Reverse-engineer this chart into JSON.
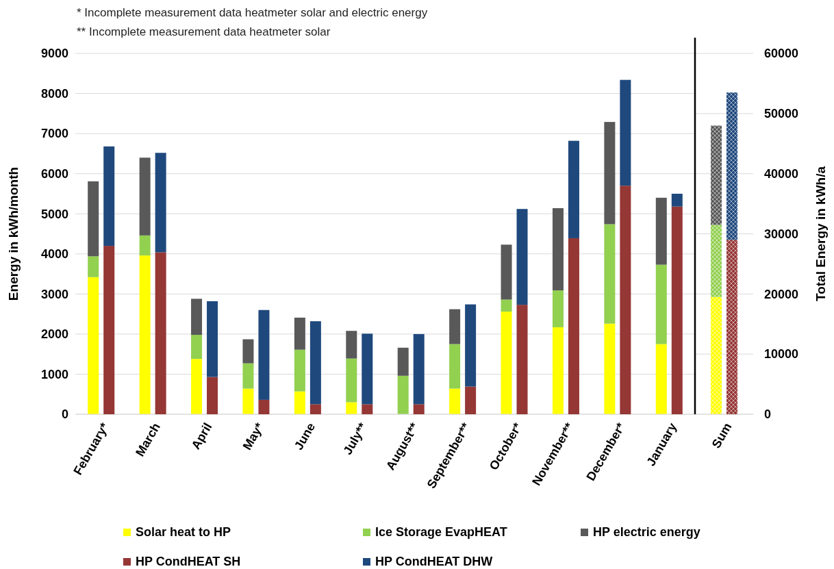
{
  "chart_data": [
    {
      "type": "bar",
      "stacked": true,
      "annotations": [
        "*   Incomplete measurement data heatmeter solar and electric energy",
        "** Incomplete measurement data heatmeter solar"
      ],
      "ylabel": "Energy in kWh/month",
      "categories": [
        "February*",
        "March",
        "April",
        "May*",
        "June",
        "July**",
        "August**",
        "September**",
        "October*",
        "November**",
        "December*",
        "January"
      ],
      "ylim": [
        0,
        9000
      ],
      "yticks": [
        0,
        1000,
        2000,
        3000,
        4000,
        5000,
        6000,
        7000,
        8000,
        9000
      ],
      "grid": "y",
      "legend": "bottom",
      "series": [
        {
          "name": "Solar heat to HP",
          "color": "#ffff00",
          "values": [
            3420,
            3960,
            1380,
            640,
            570,
            300,
            0,
            640,
            2560,
            2170,
            2260,
            1750
          ]
        },
        {
          "name": "Ice Storage EvapHEAT",
          "color": "#92d050",
          "values": [
            520,
            500,
            600,
            630,
            1040,
            1090,
            960,
            1110,
            300,
            920,
            2480,
            1980
          ]
        },
        {
          "name": "HP electric energy",
          "color": "#595959",
          "values": [
            1870,
            1940,
            900,
            600,
            800,
            690,
            700,
            870,
            1370,
            2050,
            2550,
            1670
          ]
        }
      ]
    },
    {
      "type": "bar",
      "stacked": true,
      "categories": [
        "February*",
        "March",
        "April",
        "May*",
        "June",
        "July**",
        "August**",
        "September**",
        "October*",
        "November**",
        "December*",
        "January"
      ],
      "ylim": [
        0,
        9000
      ],
      "tick_labels": false,
      "legend": "bottom",
      "series": [
        {
          "name": "HP CondHEAT SH",
          "color": "#953735",
          "values": [
            4200,
            4040,
            930,
            360,
            250,
            250,
            250,
            690,
            2730,
            4390,
            5700,
            5180
          ]
        },
        {
          "name": "HP CondHEAT DHW",
          "color": "#1f497d",
          "values": [
            2480,
            2480,
            1890,
            2240,
            2070,
            1760,
            1750,
            2050,
            2390,
            2430,
            2640,
            320
          ]
        }
      ]
    },
    {
      "type": "bar",
      "stacked": true,
      "ylabel": "Total Energy in kWh/a",
      "categories": [
        "Sum"
      ],
      "ylim": [
        0,
        60000
      ],
      "yticks": [
        0,
        10000,
        20000,
        30000,
        40000,
        50000,
        60000
      ],
      "grid": "y",
      "series": [
        {
          "color": "#ffff00",
          "values": [
            19500
          ]
        },
        {
          "color": "#92d050",
          "values": [
            12000
          ]
        },
        {
          "color": "#595959",
          "values": [
            16500
          ]
        }
      ]
    },
    {
      "type": "bar",
      "stacked": true,
      "categories": [
        "Sum"
      ],
      "ylim": [
        0,
        60000
      ],
      "tick_labels": false,
      "series": [
        {
          "color": "#953735",
          "values": [
            29000
          ]
        },
        {
          "color": "#1f497d",
          "values": [
            24500
          ]
        }
      ]
    }
  ]
}
